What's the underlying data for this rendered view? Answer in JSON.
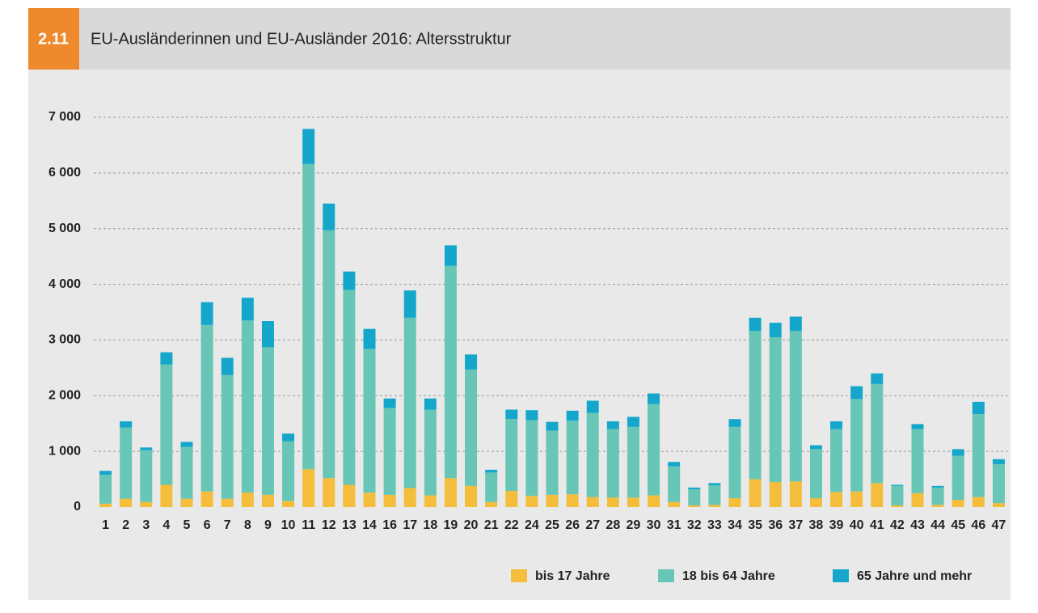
{
  "header": {
    "number": "2.11"
  },
  "chart_data": {
    "type": "stacked_bar",
    "title": "EU-Ausländerinnen und EU-Ausländer 2016: Altersstruktur",
    "categories": [
      "1",
      "2",
      "3",
      "4",
      "5",
      "6",
      "7",
      "8",
      "9",
      "10",
      "11",
      "12",
      "13",
      "14",
      "16",
      "17",
      "18",
      "19",
      "20",
      "21",
      "22",
      "24",
      "25",
      "26",
      "27",
      "28",
      "29",
      "30",
      "31",
      "32",
      "33",
      "34",
      "35",
      "36",
      "37",
      "38",
      "39",
      "40",
      "41",
      "42",
      "43",
      "44",
      "45",
      "46",
      "47"
    ],
    "series": [
      {
        "name": "bis 17 Jahre",
        "color": "#f4bd3b",
        "values": [
          60,
          150,
          90,
          400,
          150,
          280,
          150,
          260,
          220,
          110,
          680,
          520,
          400,
          260,
          220,
          340,
          210,
          520,
          380,
          90,
          290,
          200,
          220,
          230,
          180,
          170,
          170,
          210,
          90,
          30,
          40,
          160,
          500,
          450,
          460,
          160,
          270,
          280,
          430,
          30,
          250,
          40,
          130,
          180,
          70
        ]
      },
      {
        "name": "18 bis 64 Jahre",
        "color": "#67c6b5",
        "values": [
          520,
          1280,
          930,
          2160,
          930,
          2990,
          2220,
          3090,
          2650,
          1070,
          5480,
          4450,
          3500,
          2580,
          1560,
          3060,
          1540,
          3810,
          2090,
          530,
          1290,
          1360,
          1150,
          1320,
          1510,
          1230,
          1270,
          1640,
          640,
          290,
          350,
          1280,
          2660,
          2600,
          2700,
          880,
          1130,
          1660,
          1780,
          350,
          1150,
          310,
          790,
          1490,
          700
        ]
      },
      {
        "name": "65 Jahre und mehr",
        "color": "#15a7cb",
        "values": [
          70,
          110,
          50,
          220,
          90,
          410,
          310,
          410,
          470,
          140,
          630,
          480,
          330,
          360,
          170,
          490,
          200,
          370,
          270,
          50,
          170,
          180,
          160,
          180,
          220,
          140,
          180,
          190,
          80,
          30,
          40,
          140,
          240,
          260,
          260,
          70,
          140,
          230,
          190,
          20,
          90,
          30,
          120,
          220,
          90
        ]
      }
    ],
    "ylim": [
      0,
      7000
    ],
    "yticks": [
      0,
      {
        "value": 1000,
        "label": "1 000"
      },
      {
        "value": 2000,
        "label": "2 000"
      },
      {
        "value": 3000,
        "label": "3 000"
      },
      {
        "value": 4000,
        "label": "4 000"
      },
      {
        "value": 5000,
        "label": "5 000"
      },
      {
        "value": 6000,
        "label": "6 000"
      },
      {
        "value": 7000,
        "label": "7 000"
      }
    ],
    "grid": true
  }
}
